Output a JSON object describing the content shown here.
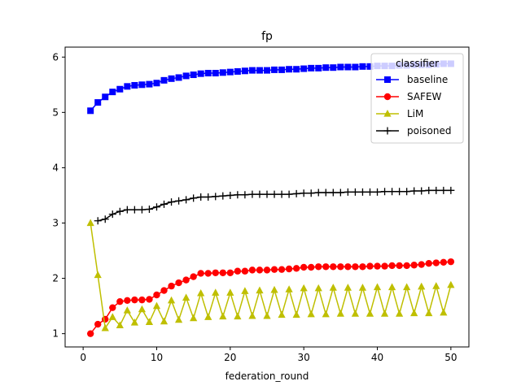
{
  "chart_data": {
    "type": "line",
    "title": "fp",
    "xlabel": "federation_round",
    "ylabel": "",
    "xlim": [
      -2.45,
      52.45
    ],
    "ylim": [
      0.76,
      6.18
    ],
    "xticks": [
      0,
      10,
      20,
      30,
      40,
      50
    ],
    "yticks": [
      1,
      2,
      3,
      4,
      5,
      6
    ],
    "legend": {
      "title": "classifier",
      "position": "top-right"
    },
    "series": [
      {
        "name": "baseline",
        "color": "#0000ff",
        "marker": "square",
        "x": [
          1,
          2,
          3,
          4,
          5,
          6,
          7,
          8,
          9,
          10,
          11,
          12,
          13,
          14,
          15,
          16,
          17,
          18,
          19,
          20,
          21,
          22,
          23,
          24,
          25,
          26,
          27,
          28,
          29,
          30,
          31,
          32,
          33,
          34,
          35,
          36,
          37,
          38,
          39,
          40,
          41,
          42,
          43,
          44,
          45,
          46,
          47,
          48,
          49,
          50
        ],
        "values": [
          5.03,
          5.18,
          5.28,
          5.37,
          5.42,
          5.47,
          5.49,
          5.5,
          5.51,
          5.53,
          5.58,
          5.61,
          5.63,
          5.66,
          5.68,
          5.7,
          5.71,
          5.71,
          5.72,
          5.73,
          5.74,
          5.75,
          5.76,
          5.76,
          5.76,
          5.77,
          5.77,
          5.78,
          5.78,
          5.79,
          5.8,
          5.8,
          5.81,
          5.81,
          5.82,
          5.82,
          5.82,
          5.83,
          5.83,
          5.84,
          5.84,
          5.84,
          5.85,
          5.85,
          5.86,
          5.86,
          5.86,
          5.87,
          5.88,
          5.88
        ]
      },
      {
        "name": "SAFEW",
        "color": "#ff0000",
        "marker": "circle",
        "x": [
          1,
          2,
          3,
          4,
          5,
          6,
          7,
          8,
          9,
          10,
          11,
          12,
          13,
          14,
          15,
          16,
          17,
          18,
          19,
          20,
          21,
          22,
          23,
          24,
          25,
          26,
          27,
          28,
          29,
          30,
          31,
          32,
          33,
          34,
          35,
          36,
          37,
          38,
          39,
          40,
          41,
          42,
          43,
          44,
          45,
          46,
          47,
          48,
          49,
          50
        ],
        "values": [
          1.0,
          1.17,
          1.26,
          1.47,
          1.58,
          1.6,
          1.61,
          1.61,
          1.62,
          1.7,
          1.78,
          1.86,
          1.92,
          1.97,
          2.03,
          2.09,
          2.09,
          2.1,
          2.1,
          2.1,
          2.13,
          2.13,
          2.15,
          2.15,
          2.15,
          2.16,
          2.16,
          2.17,
          2.18,
          2.2,
          2.2,
          2.21,
          2.21,
          2.21,
          2.21,
          2.21,
          2.21,
          2.21,
          2.22,
          2.22,
          2.22,
          2.23,
          2.23,
          2.23,
          2.24,
          2.25,
          2.27,
          2.28,
          2.29,
          2.3
        ]
      },
      {
        "name": "LiM",
        "color": "#bfbf00",
        "marker": "triangle",
        "x": [
          1,
          2,
          3,
          4,
          5,
          6,
          7,
          8,
          9,
          10,
          11,
          12,
          13,
          14,
          15,
          16,
          17,
          18,
          19,
          20,
          21,
          22,
          23,
          24,
          25,
          26,
          27,
          28,
          29,
          30,
          31,
          32,
          33,
          34,
          35,
          36,
          37,
          38,
          39,
          40,
          41,
          42,
          43,
          44,
          45,
          46,
          47,
          48,
          49,
          50
        ],
        "values": [
          3.0,
          2.06,
          1.1,
          1.3,
          1.15,
          1.42,
          1.2,
          1.44,
          1.21,
          1.5,
          1.22,
          1.6,
          1.25,
          1.65,
          1.28,
          1.73,
          1.3,
          1.74,
          1.31,
          1.74,
          1.31,
          1.77,
          1.32,
          1.78,
          1.32,
          1.79,
          1.34,
          1.8,
          1.34,
          1.82,
          1.35,
          1.82,
          1.35,
          1.83,
          1.36,
          1.83,
          1.36,
          1.83,
          1.36,
          1.84,
          1.36,
          1.84,
          1.36,
          1.84,
          1.37,
          1.85,
          1.37,
          1.86,
          1.38,
          1.88
        ]
      },
      {
        "name": "poisoned",
        "color": "#000000",
        "marker": "plus",
        "x": [
          2,
          3,
          4,
          5,
          6,
          7,
          8,
          9,
          10,
          11,
          12,
          13,
          14,
          15,
          16,
          17,
          18,
          19,
          20,
          21,
          22,
          23,
          24,
          25,
          26,
          27,
          28,
          29,
          30,
          31,
          32,
          33,
          34,
          35,
          36,
          37,
          38,
          39,
          40,
          41,
          42,
          43,
          44,
          45,
          46,
          47,
          48,
          49,
          50
        ],
        "values": [
          3.04,
          3.07,
          3.16,
          3.21,
          3.24,
          3.24,
          3.24,
          3.25,
          3.29,
          3.34,
          3.38,
          3.4,
          3.42,
          3.45,
          3.47,
          3.47,
          3.48,
          3.49,
          3.5,
          3.51,
          3.51,
          3.52,
          3.52,
          3.52,
          3.52,
          3.52,
          3.52,
          3.53,
          3.54,
          3.54,
          3.55,
          3.55,
          3.55,
          3.55,
          3.56,
          3.56,
          3.56,
          3.56,
          3.56,
          3.57,
          3.57,
          3.57,
          3.57,
          3.58,
          3.58,
          3.59,
          3.59,
          3.59,
          3.59
        ]
      }
    ]
  }
}
